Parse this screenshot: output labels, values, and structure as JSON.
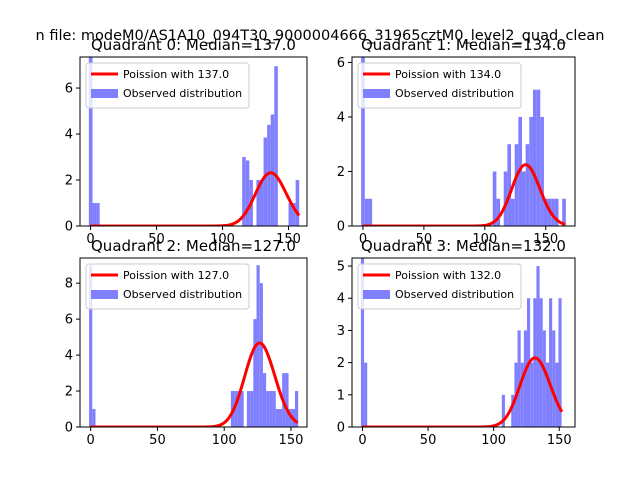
{
  "figure": {
    "suptitle": "n file: modeM0/AS1A10_094T30_9000004666_31965cztM0_level2_quad_clean"
  },
  "chart_data": [
    {
      "type": "bar",
      "title": "Quadrant 0: Median=137.0",
      "xlim": [
        -8,
        164
      ],
      "ylim": [
        0,
        7.35
      ],
      "xticks": [
        0,
        50,
        100,
        150
      ],
      "yticks": [
        0,
        2,
        4,
        6
      ],
      "legend": {
        "position": "top-left",
        "labels": [
          "Poission with 137.0",
          "Observed distribution"
        ]
      },
      "histogram": {
        "bin_edges": [
          -1.3,
          1.5,
          4.2,
          6.9,
          114.9,
          117.6,
          120.3,
          123.0,
          125.7,
          128.4,
          131.1,
          133.8,
          136.5,
          139.2,
          141.9,
          144.6,
          147.3,
          150.0,
          152.7,
          155.4,
          158.1
        ],
        "counts": [
          7.35,
          1,
          1,
          0,
          3,
          2.85,
          2,
          0,
          2,
          2,
          3.85,
          4.4,
          4.85,
          6.95,
          0,
          0,
          0,
          1,
          1,
          2
        ]
      },
      "poisson": {
        "lambda": 137.0,
        "x_range": [
          0,
          158
        ],
        "scale": 1.5
      }
    },
    {
      "type": "bar",
      "title": "Quadrant 1: Median=134.0",
      "xlim": [
        -9,
        174
      ],
      "ylim": [
        0,
        6.2
      ],
      "xticks": [
        0,
        50,
        100,
        150
      ],
      "yticks": [
        0,
        2,
        4,
        6
      ],
      "legend": {
        "position": "top-left",
        "labels": [
          "Poission with 134.0",
          "Observed distribution"
        ]
      },
      "histogram": {
        "bin_edges": [
          -1.5,
          1.5,
          4.5,
          7.5,
          106.5,
          109.5,
          112.5,
          115.5,
          118.5,
          121.5,
          124.5,
          127.5,
          130.5,
          133.5,
          136.5,
          139.5,
          142.5,
          145.5,
          148.5,
          151.5,
          154.5,
          157.5,
          160.5,
          163.5,
          166.5
        ],
        "counts": [
          6.2,
          1,
          1,
          0,
          2,
          1,
          0,
          2,
          3,
          1,
          3,
          4,
          2,
          3,
          4,
          5,
          5,
          4,
          1,
          1,
          1,
          1,
          0,
          1
        ]
      },
      "poisson": {
        "lambda": 134.0,
        "x_range": [
          0,
          166
        ],
        "scale": 1.25
      }
    },
    {
      "type": "bar",
      "title": "Quadrant 2: Median=127.0",
      "xlim": [
        -8,
        162
      ],
      "ylim": [
        0,
        9.4
      ],
      "xticks": [
        0,
        50,
        100,
        150
      ],
      "yticks": [
        0,
        2,
        4,
        6,
        8
      ],
      "legend": {
        "position": "top-left",
        "labels": [
          "Poission with 127.0",
          "Observed distribution"
        ]
      },
      "histogram": {
        "bin_edges": [
          -1.2,
          1.2,
          3.6,
          105.0,
          107.4,
          109.8,
          112.2,
          114.6,
          117.0,
          119.4,
          121.8,
          124.2,
          126.6,
          129.0,
          131.4,
          133.8,
          136.2,
          138.6,
          141.0,
          143.4,
          145.8,
          148.2,
          150.6,
          153.0,
          155.4
        ],
        "counts": [
          9,
          1,
          0,
          2,
          2,
          2,
          2,
          0,
          2,
          2,
          6,
          9,
          8,
          3,
          2,
          2,
          2,
          1,
          1,
          3,
          3,
          1,
          1,
          2
        ]
      },
      "poisson": {
        "lambda": 127.0,
        "x_range": [
          0,
          155
        ],
        "scale": 2.0
      }
    },
    {
      "type": "bar",
      "title": "Quadrant 3: Median=132.0",
      "xlim": [
        -8,
        162
      ],
      "ylim": [
        0,
        5.25
      ],
      "xticks": [
        0,
        50,
        100,
        150
      ],
      "yticks": [
        0,
        1,
        2,
        3,
        4,
        5
      ],
      "legend": {
        "position": "top-left",
        "labels": [
          "Poission with 132.0",
          "Observed distribution"
        ]
      },
      "histogram": {
        "bin_edges": [
          -1.2,
          1.2,
          3.6,
          6.0,
          106.2,
          108.6,
          111.0,
          113.4,
          115.8,
          118.2,
          120.6,
          123.0,
          125.4,
          127.8,
          130.2,
          132.6,
          135.0,
          137.4,
          139.8,
          142.2,
          144.6,
          147.0,
          149.4,
          151.8
        ],
        "counts": [
          5.25,
          2,
          0,
          0,
          1,
          0,
          0,
          1,
          2,
          3,
          2,
          3,
          4,
          2,
          4,
          5,
          4,
          3,
          2,
          4,
          3,
          2,
          4
        ]
      },
      "poisson": {
        "lambda": 132.0,
        "x_range": [
          0,
          152
        ],
        "scale": 1.1
      }
    }
  ]
}
